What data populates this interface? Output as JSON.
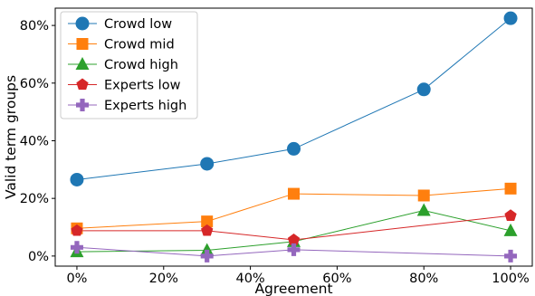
{
  "chart_data": {
    "type": "line",
    "xlabel": "Agreement",
    "ylabel": "Valid term groups",
    "x": [
      0,
      30,
      50,
      80,
      100
    ],
    "xlim": [
      -5,
      105
    ],
    "ylim": [
      -3.5,
      86
    ],
    "xticks": [
      0,
      20,
      40,
      60,
      80,
      100
    ],
    "xtick_labels": [
      "0%",
      "20%",
      "40%",
      "60%",
      "80%",
      "100%"
    ],
    "yticks": [
      0,
      20,
      40,
      60,
      80
    ],
    "ytick_labels": [
      "0%",
      "20%",
      "40%",
      "60%",
      "80%"
    ],
    "grid": false,
    "legend_position": "top-left",
    "series": [
      {
        "name": "Crowd low",
        "marker": "circle",
        "color": "#1f77b4",
        "values": [
          26.5,
          32,
          37.2,
          57.8,
          82.5
        ]
      },
      {
        "name": "Crowd mid",
        "marker": "square",
        "color": "#ff7f0e",
        "values": [
          9.6,
          12,
          21.6,
          21,
          23.4
        ]
      },
      {
        "name": "Crowd high",
        "marker": "triangle",
        "color": "#2ca02c",
        "values": [
          1.5,
          2,
          5,
          15.8,
          8.8
        ]
      },
      {
        "name": "Experts low",
        "marker": "pentagon",
        "color": "#d62728",
        "values": [
          8.8,
          8.8,
          5.6,
          null,
          14
        ]
      },
      {
        "name": "Experts high",
        "marker": "plus",
        "color": "#9467bd",
        "values": [
          3,
          0,
          2.2,
          null,
          0
        ]
      }
    ]
  }
}
